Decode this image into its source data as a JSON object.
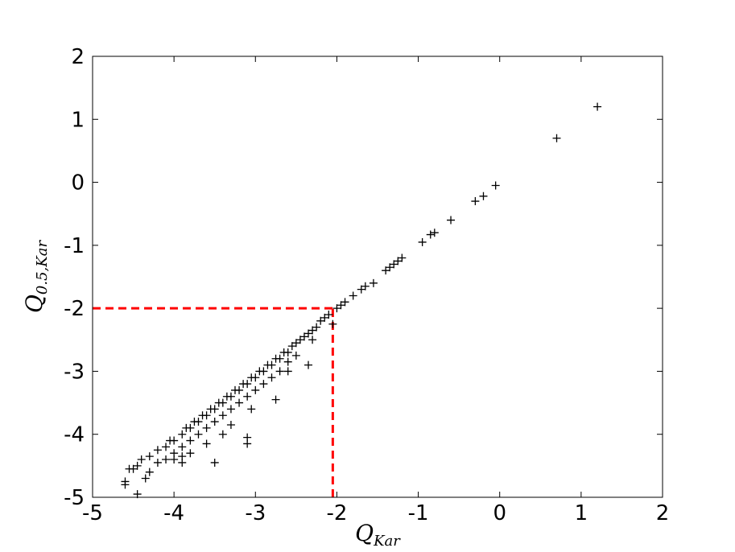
{
  "chart_data": {
    "type": "scatter",
    "x_label": "Q",
    "x_label_sub": "Kar",
    "y_label": "Q",
    "y_label_sub": "0.5,Kar",
    "xlim": [
      -5,
      2
    ],
    "ylim": [
      -5,
      2
    ],
    "xticks": [
      -5,
      -4,
      -3,
      -2,
      -1,
      0,
      1,
      2
    ],
    "yticks": [
      -5,
      -4,
      -3,
      -2,
      -1,
      0,
      1,
      2
    ],
    "color": "#000000",
    "threshold": {
      "x": -2.05,
      "y": -2,
      "color": "#ff0000"
    },
    "x": [
      1.2,
      0.7,
      -0.05,
      -0.2,
      -0.3,
      -0.6,
      -0.8,
      -0.85,
      -0.95,
      -1.2,
      -1.25,
      -1.3,
      -1.35,
      -1.4,
      -1.55,
      -1.65,
      -1.7,
      -1.8,
      -1.9,
      -1.95,
      -2.0,
      -2.1,
      -2.15,
      -2.2,
      -2.25,
      -2.3,
      -2.35,
      -2.4,
      -2.45,
      -2.5,
      -2.55,
      -2.6,
      -2.65,
      -2.7,
      -2.75,
      -2.8,
      -2.85,
      -2.9,
      -2.95,
      -3.0,
      -3.05,
      -3.1,
      -3.15,
      -3.2,
      -3.25,
      -3.3,
      -3.35,
      -3.4,
      -3.45,
      -3.5,
      -3.55,
      -3.6,
      -3.65,
      -3.7,
      -3.75,
      -3.8,
      -3.85,
      -3.9,
      -4.0,
      -4.05,
      -4.1,
      -4.2,
      -4.3,
      -4.4,
      -4.5,
      -2.3,
      -2.5,
      -2.7,
      -2.8,
      -2.9,
      -3.0,
      -3.1,
      -3.2,
      -3.3,
      -3.4,
      -3.5,
      -3.6,
      -3.7,
      -3.8,
      -3.9,
      -4.0,
      -4.1,
      -4.2,
      -4.3,
      -2.6,
      -3.3,
      -3.4,
      -3.6,
      -3.8,
      -3.9,
      -2.05,
      -2.35,
      -2.6,
      -2.75,
      -3.05,
      -3.1,
      -3.1,
      -3.5,
      -3.9,
      -4.0,
      -4.6,
      -4.6,
      -4.55,
      -4.45,
      -4.35,
      -4.45
    ],
    "y": [
      1.2,
      0.7,
      -0.05,
      -0.22,
      -0.3,
      -0.6,
      -0.8,
      -0.83,
      -0.95,
      -1.2,
      -1.25,
      -1.3,
      -1.35,
      -1.4,
      -1.6,
      -1.65,
      -1.7,
      -1.8,
      -1.9,
      -1.95,
      -2.0,
      -2.1,
      -2.15,
      -2.2,
      -2.3,
      -2.35,
      -2.4,
      -2.45,
      -2.5,
      -2.55,
      -2.6,
      -2.7,
      -2.7,
      -2.8,
      -2.8,
      -2.9,
      -2.9,
      -3.0,
      -3.0,
      -3.1,
      -3.1,
      -3.2,
      -3.2,
      -3.3,
      -3.3,
      -3.4,
      -3.4,
      -3.5,
      -3.5,
      -3.6,
      -3.6,
      -3.7,
      -3.7,
      -3.8,
      -3.8,
      -3.9,
      -3.9,
      -4.0,
      -4.1,
      -4.1,
      -4.2,
      -4.25,
      -4.35,
      -4.4,
      -4.55,
      -2.5,
      -2.75,
      -3.0,
      -3.1,
      -3.2,
      -3.3,
      -3.4,
      -3.5,
      -3.6,
      -3.7,
      -3.8,
      -3.9,
      -4.0,
      -4.1,
      -4.2,
      -4.3,
      -4.4,
      -4.45,
      -4.6,
      -2.85,
      -3.85,
      -4.0,
      -4.15,
      -4.3,
      -4.35,
      -2.25,
      -2.9,
      -3.0,
      -3.45,
      -3.6,
      -4.05,
      -4.15,
      -4.45,
      -4.45,
      -4.4,
      -4.8,
      -4.75,
      -4.55,
      -4.95,
      -4.7,
      -4.5
    ]
  }
}
